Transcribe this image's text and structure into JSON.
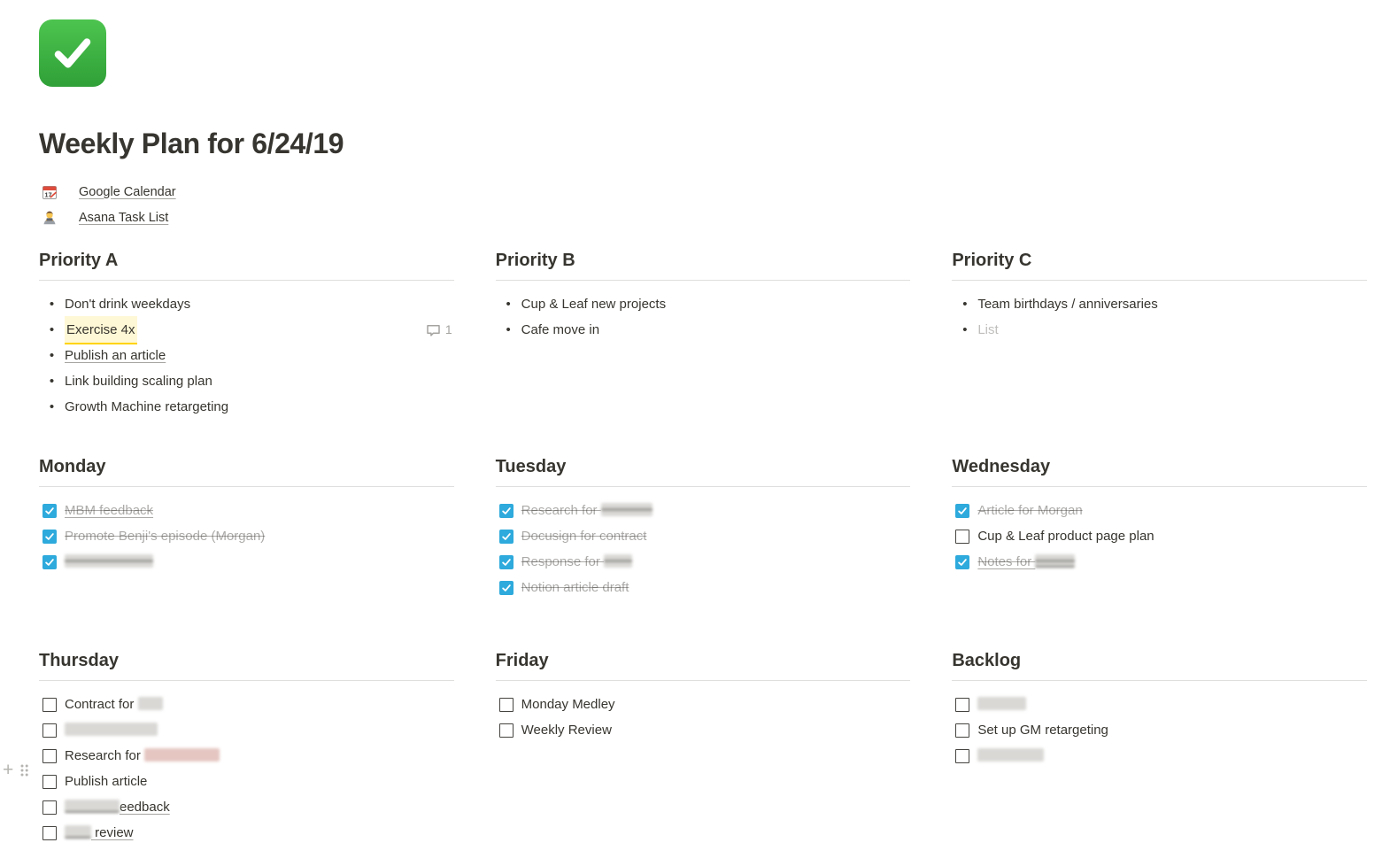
{
  "page": {
    "icon": "white-check-mark-page-icon",
    "title": "Weekly Plan for 6/24/19",
    "links": [
      {
        "icon": "calendar-icon",
        "label": "Google Calendar"
      },
      {
        "icon": "technologist-icon",
        "label": "Asana Task List"
      }
    ]
  },
  "colors": {
    "text": "#37352F",
    "muted_done_text": "rgba(55,53,47,0.42)",
    "placeholder_text": "rgba(55,53,47,0.32)",
    "divider": "rgba(55,53,47,0.16)",
    "todo_checked_blue": "#2EAADC",
    "comment_highlight_bg": "rgba(255,212,0,0.16)",
    "comment_highlight_underline": "#FFD400",
    "page_icon_green": "#3FB23F"
  },
  "sections": [
    {
      "id": "priority-a",
      "title": "Priority A",
      "kind": "bullets",
      "row": 1,
      "items": [
        {
          "segments": [
            {
              "text": "Don't drink weekdays"
            }
          ]
        },
        {
          "segments": [
            {
              "text": "Exercise 4x"
            }
          ],
          "highlight": true,
          "comment_count": "1"
        },
        {
          "segments": [
            {
              "text": "Publish an article"
            }
          ],
          "link": true
        },
        {
          "segments": [
            {
              "text": "Link building scaling plan"
            }
          ]
        },
        {
          "segments": [
            {
              "text": "Growth Machine retargeting"
            }
          ]
        }
      ]
    },
    {
      "id": "priority-b",
      "title": "Priority B",
      "kind": "bullets",
      "row": 1,
      "items": [
        {
          "segments": [
            {
              "text": "Cup & Leaf new projects"
            }
          ]
        },
        {
          "segments": [
            {
              "text": "Cafe move in"
            }
          ]
        }
      ]
    },
    {
      "id": "priority-c",
      "title": "Priority C",
      "kind": "bullets",
      "row": 1,
      "items": [
        {
          "segments": [
            {
              "text": "Team birthdays / anniversaries"
            }
          ]
        },
        {
          "segments": [
            {
              "text": "List"
            }
          ],
          "placeholder": true
        }
      ]
    },
    {
      "id": "monday",
      "title": "Monday",
      "kind": "todos",
      "row": 2,
      "items": [
        {
          "checked": true,
          "link": true,
          "segments": [
            {
              "text": "MBM feedback"
            }
          ]
        },
        {
          "checked": true,
          "segments": [
            {
              "text": "Promote Benji's episode (Morgan)"
            }
          ]
        },
        {
          "checked": true,
          "segments": [
            {
              "redacted": 100
            }
          ]
        }
      ]
    },
    {
      "id": "tuesday",
      "title": "Tuesday",
      "kind": "todos",
      "row": 2,
      "items": [
        {
          "checked": true,
          "segments": [
            {
              "text": "Research for "
            },
            {
              "redacted": 58
            }
          ]
        },
        {
          "checked": true,
          "segments": [
            {
              "text": "Docusign for contract"
            }
          ]
        },
        {
          "checked": true,
          "segments": [
            {
              "text": "Response for "
            },
            {
              "redacted": 32
            }
          ]
        },
        {
          "checked": true,
          "segments": [
            {
              "text": "Notion article draft"
            }
          ]
        }
      ]
    },
    {
      "id": "wednesday",
      "title": "Wednesday",
      "kind": "todos",
      "row": 2,
      "items": [
        {
          "checked": true,
          "segments": [
            {
              "text": "Article for Morgan"
            }
          ]
        },
        {
          "checked": false,
          "segments": [
            {
              "text": "Cup & Leaf product page plan"
            }
          ]
        },
        {
          "checked": true,
          "link": true,
          "segments": [
            {
              "text": "Notes for "
            },
            {
              "redacted": 45
            }
          ]
        }
      ]
    },
    {
      "id": "thursday",
      "title": "Thursday",
      "kind": "todos",
      "row": 3,
      "items": [
        {
          "checked": false,
          "segments": [
            {
              "text": "Contract for "
            },
            {
              "redacted": 28
            }
          ]
        },
        {
          "checked": false,
          "segments": [
            {
              "redacted": 105
            }
          ]
        },
        {
          "checked": false,
          "segments": [
            {
              "text": "Research for "
            },
            {
              "redacted": 85,
              "tint": "pink"
            }
          ]
        },
        {
          "checked": false,
          "segments": [
            {
              "text": "Publish article"
            }
          ]
        },
        {
          "checked": false,
          "link": true,
          "segments": [
            {
              "redacted": 62
            },
            {
              "text": "eedback"
            }
          ]
        },
        {
          "checked": false,
          "link": true,
          "segments": [
            {
              "redacted": 30
            },
            {
              "text": " review"
            }
          ]
        }
      ]
    },
    {
      "id": "friday",
      "title": "Friday",
      "kind": "todos",
      "row": 3,
      "items": [
        {
          "checked": false,
          "segments": [
            {
              "text": "Monday Medley"
            }
          ]
        },
        {
          "checked": false,
          "segments": [
            {
              "text": "Weekly Review"
            }
          ]
        }
      ]
    },
    {
      "id": "backlog",
      "title": "Backlog",
      "kind": "todos",
      "row": 3,
      "items": [
        {
          "checked": false,
          "segments": [
            {
              "redacted": 55
            }
          ]
        },
        {
          "checked": false,
          "segments": [
            {
              "text": "Set up GM retargeting"
            }
          ]
        },
        {
          "checked": false,
          "segments": [
            {
              "redacted": 75
            }
          ]
        }
      ]
    }
  ],
  "hover_controls": {
    "plus": "+"
  }
}
